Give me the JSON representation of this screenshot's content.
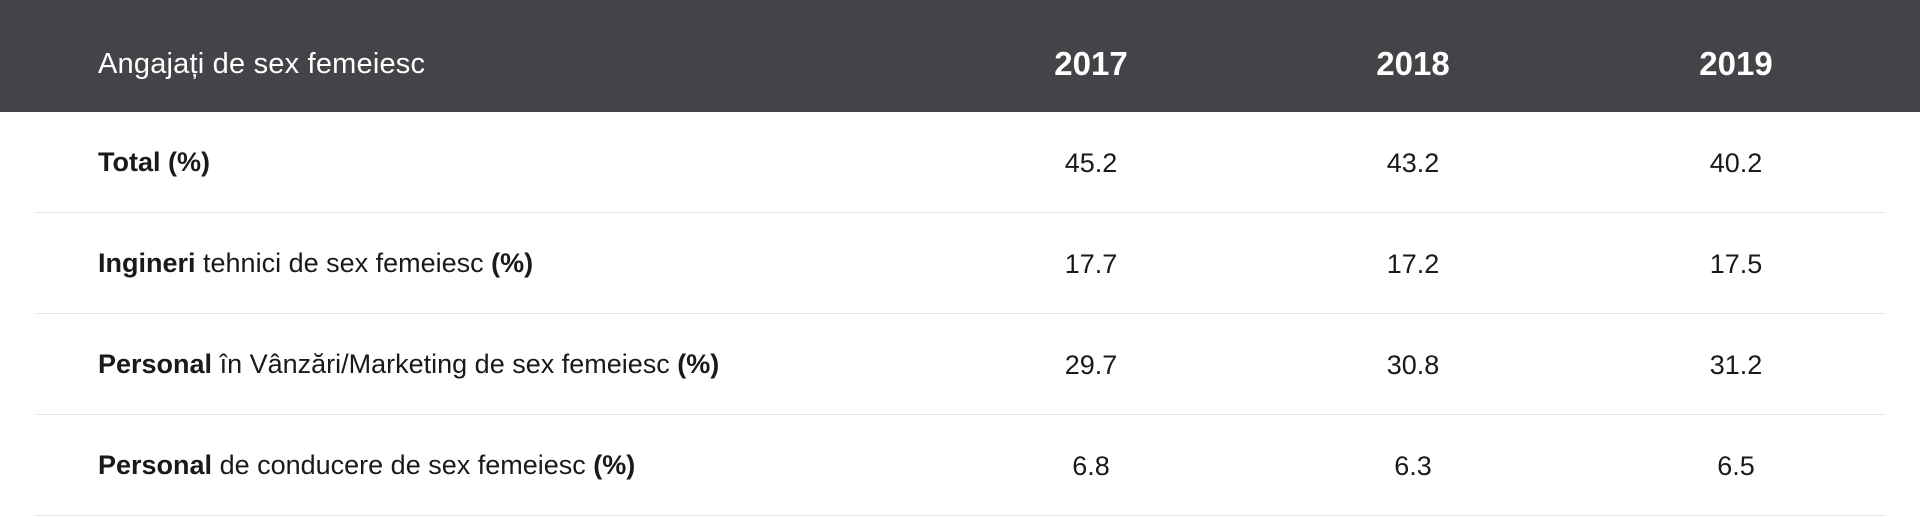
{
  "header": {
    "label": "Angajați de sex femeiesc",
    "years": [
      "2017",
      "2018",
      "2019"
    ]
  },
  "rows": [
    {
      "bold_lead": "Total",
      "rest": "",
      "bold_tail": " (%)",
      "values": [
        "45.2",
        "43.2",
        "40.2"
      ]
    },
    {
      "bold_lead": "Ingineri",
      "rest": " tehnici de sex femeiesc ",
      "bold_tail": "(%)",
      "values": [
        "17.7",
        "17.2",
        "17.5"
      ]
    },
    {
      "bold_lead": "Personal",
      "rest": " în Vânzări/Marketing de sex femeiesc ",
      "bold_tail": "(%)",
      "values": [
        "29.7",
        "30.8",
        "31.2"
      ]
    },
    {
      "bold_lead": "Personal",
      "rest": " de conducere de sex femeiesc ",
      "bold_tail": "(%)",
      "values": [
        "6.8",
        "6.3",
        "6.5"
      ]
    }
  ]
}
